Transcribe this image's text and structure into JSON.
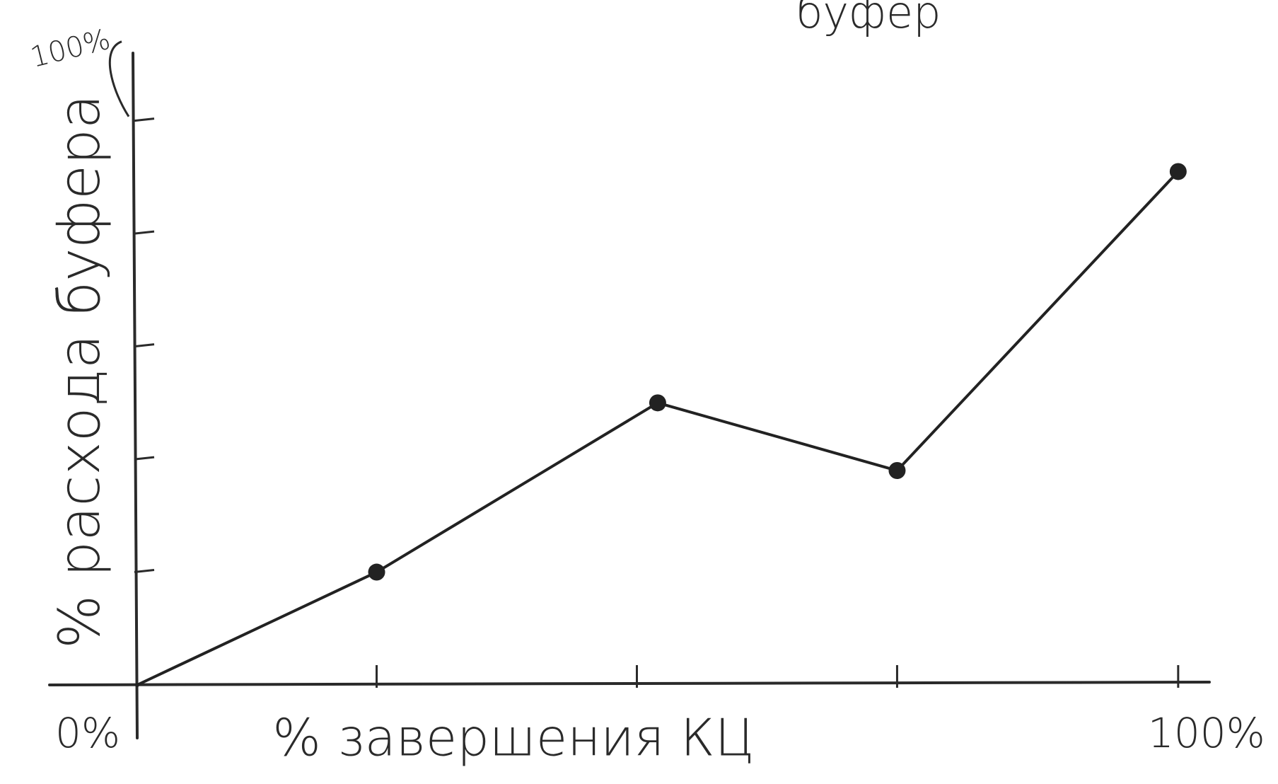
{
  "chart_data": {
    "type": "line",
    "title": "буфер",
    "x_label": "% завершения КЦ",
    "y_label": "% расхода буфера",
    "x": [
      0,
      23,
      50,
      73,
      100
    ],
    "values": [
      0,
      20,
      50,
      38,
      91
    ],
    "color": "#222222",
    "xlim": [
      0,
      103
    ],
    "ylim": [
      0,
      112
    ],
    "xticks": [
      {
        "value": 0,
        "label": "0%"
      },
      {
        "value": 23,
        "label": null
      },
      {
        "value": 48,
        "label": null
      },
      {
        "value": 73,
        "label": null
      },
      {
        "value": 100,
        "label": "100%"
      }
    ],
    "yticks": [
      {
        "value": 20,
        "label": null
      },
      {
        "value": 40,
        "label": null
      },
      {
        "value": 60,
        "label": null
      },
      {
        "value": 80,
        "label": null
      },
      {
        "value": 100,
        "label": "100%"
      }
    ],
    "grid": false
  }
}
